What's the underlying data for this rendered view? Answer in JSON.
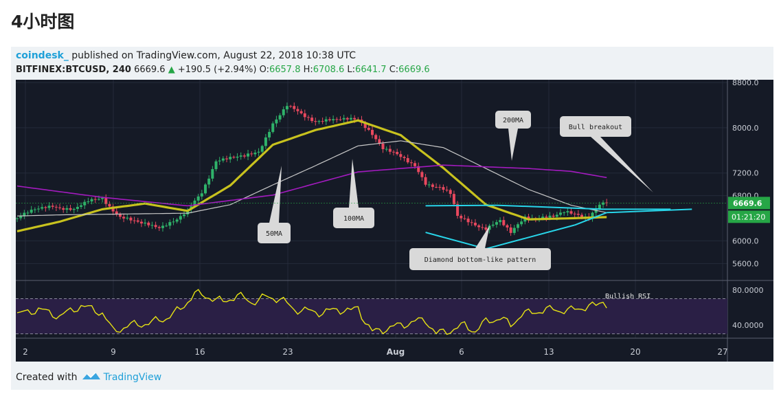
{
  "page": {
    "heading": "4小时图"
  },
  "embed": {
    "author": "coindesk_",
    "published_text": " published on TradingView.com, August 22, 2018 10:38 UTC",
    "symbol": "BITFINEX:BTCUSD, 240",
    "price": "6669.6",
    "change": "+190.5 (+2.94%)",
    "open_label": "O:",
    "open": "6657.8",
    "high_label": "H:",
    "high": "6708.6",
    "low_label": "L:",
    "low": "6641.7",
    "close_label": "C:",
    "close": "6669.6",
    "footer_prefix": "Created with",
    "footer_brand": "TradingView"
  },
  "colors": {
    "background": "#151a26",
    "up_candle": "#2fb36a",
    "down_candle": "#e8485e",
    "ma50": "#c8c21e",
    "ma100": "#c9c9c9",
    "ma200": "#a31bbf",
    "pattern": "#28d6ea",
    "rsi": "#e6e214",
    "price_tag": "#26a646"
  },
  "chart_data": [
    {
      "type": "candlestick",
      "title": "",
      "ylim": [
        5300,
        8850
      ],
      "y_ticks": [
        "8800.0",
        "8000.0",
        "7200.0",
        "6800.0",
        "6000.0",
        "5600.0"
      ],
      "x_tick_labels": [
        "2",
        "9",
        "16",
        "23",
        "Aug",
        "6",
        "13",
        "20",
        "27"
      ],
      "last_price_label": "6669.6",
      "countdown_label": "01:21:20",
      "anchors_close": [
        [
          0,
          6400
        ],
        [
          5,
          6550
        ],
        [
          10,
          6630
        ],
        [
          16,
          6540
        ],
        [
          20,
          6700
        ],
        [
          24,
          6760
        ],
        [
          29,
          6420
        ],
        [
          35,
          6300
        ],
        [
          40,
          6260
        ],
        [
          45,
          6370
        ],
        [
          48,
          6520
        ],
        [
          52,
          6850
        ],
        [
          56,
          7430
        ],
        [
          60,
          7470
        ],
        [
          64,
          7480
        ],
        [
          68,
          7590
        ],
        [
          72,
          8080
        ],
        [
          76,
          8390
        ],
        [
          80,
          8230
        ],
        [
          84,
          8120
        ],
        [
          88,
          8160
        ],
        [
          92,
          8130
        ],
        [
          96,
          8150
        ],
        [
          100,
          7900
        ],
        [
          103,
          7650
        ],
        [
          108,
          7470
        ],
        [
          112,
          7330
        ],
        [
          115,
          7030
        ],
        [
          119,
          6940
        ],
        [
          122,
          6820
        ],
        [
          124,
          6430
        ],
        [
          128,
          6320
        ],
        [
          132,
          6230
        ],
        [
          136,
          6340
        ],
        [
          139,
          6140
        ],
        [
          143,
          6430
        ],
        [
          147,
          6410
        ],
        [
          151,
          6420
        ],
        [
          154,
          6500
        ],
        [
          158,
          6480
        ],
        [
          161,
          6420
        ],
        [
          164,
          6640
        ],
        [
          166,
          6669.6
        ]
      ],
      "series": [
        {
          "name": "50MA",
          "x": [
            0,
            12,
            24,
            36,
            48,
            60,
            72,
            84,
            96,
            108,
            120,
            132,
            144,
            156,
            166
          ],
          "y": [
            6170,
            6340,
            6560,
            6660,
            6530,
            6980,
            7700,
            7960,
            8130,
            7870,
            7290,
            6640,
            6380,
            6400,
            6420
          ]
        },
        {
          "name": "100MA",
          "x": [
            0,
            12,
            24,
            36,
            48,
            60,
            72,
            84,
            96,
            108,
            120,
            132,
            144,
            156,
            166
          ],
          "y": [
            6440,
            6460,
            6470,
            6480,
            6490,
            6640,
            6990,
            7330,
            7680,
            7770,
            7650,
            7280,
            6910,
            6630,
            6500
          ]
        },
        {
          "name": "200MA",
          "x": [
            0,
            24,
            48,
            72,
            96,
            108,
            120,
            132,
            144,
            156,
            166
          ],
          "y": [
            6970,
            6770,
            6620,
            6810,
            7220,
            7280,
            7340,
            7310,
            7280,
            7230,
            7120
          ]
        }
      ],
      "annotations": [
        "50MA",
        "100MA",
        "200MA",
        "Bull breakout",
        "Diamond bottom-like pattern"
      ],
      "pattern_points": [
        [
          115,
          6620
        ],
        [
          135,
          6630
        ],
        [
          165,
          6560
        ],
        [
          184,
          6560
        ],
        [
          132,
          5860
        ],
        [
          115,
          6150
        ],
        [
          157,
          6280
        ],
        [
          166,
          6500
        ]
      ]
    },
    {
      "type": "line",
      "title": "",
      "ylim": [
        25,
        90
      ],
      "y_ticks": [
        "80.0000",
        "40.0000"
      ],
      "reference_lines": [
        70,
        30
      ],
      "annotations": [
        "Bullish RSI"
      ],
      "anchors": [
        [
          0,
          52
        ],
        [
          6,
          58
        ],
        [
          12,
          50
        ],
        [
          18,
          62
        ],
        [
          24,
          54
        ],
        [
          27,
          33
        ],
        [
          32,
          40
        ],
        [
          37,
          42
        ],
        [
          42,
          48
        ],
        [
          46,
          58
        ],
        [
          50,
          76
        ],
        [
          54,
          72
        ],
        [
          58,
          66
        ],
        [
          62,
          74
        ],
        [
          66,
          66
        ],
        [
          70,
          72
        ],
        [
          74,
          70
        ],
        [
          78,
          58
        ],
        [
          82,
          56
        ],
        [
          86,
          54
        ],
        [
          90,
          58
        ],
        [
          94,
          56
        ],
        [
          96,
          60
        ],
        [
          98,
          44
        ],
        [
          100,
          32
        ],
        [
          104,
          36
        ],
        [
          108,
          40
        ],
        [
          112,
          44
        ],
        [
          115,
          46
        ],
        [
          118,
          30
        ],
        [
          122,
          34
        ],
        [
          126,
          40
        ],
        [
          129,
          33
        ],
        [
          132,
          44
        ],
        [
          136,
          48
        ],
        [
          139,
          40
        ],
        [
          142,
          52
        ],
        [
          147,
          56
        ],
        [
          151,
          58
        ],
        [
          155,
          56
        ],
        [
          159,
          60
        ],
        [
          163,
          62
        ],
        [
          165,
          68
        ],
        [
          166,
          64
        ]
      ]
    }
  ]
}
